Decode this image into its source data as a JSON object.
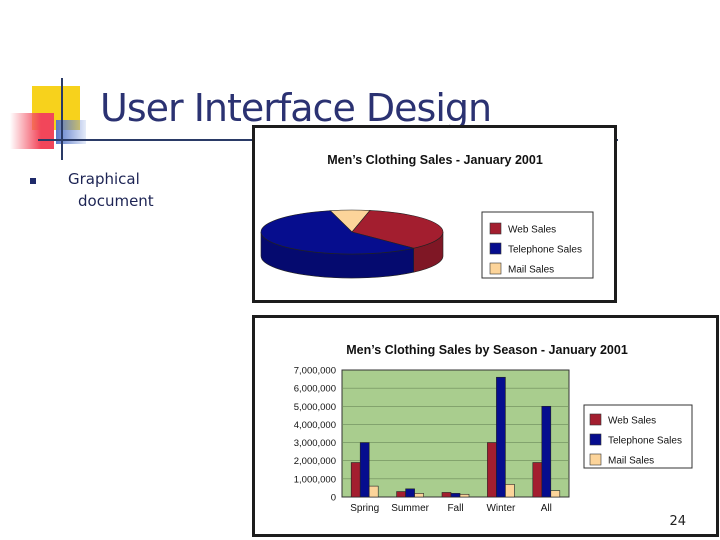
{
  "slide": {
    "title": "User Interface Design",
    "bullet": {
      "line1": "Graphical",
      "line2": "document"
    },
    "page_number": "24"
  },
  "colors": {
    "web": "#a31e2f",
    "telephone": "#060d8e",
    "mail": "#fcd49a",
    "plot_bg": "#a9cd8e",
    "title_blue": "#2b3272"
  },
  "chart_data": [
    {
      "type": "pie",
      "title": "Men’s Clothing Sales - January 2001",
      "labels": [
        "Web Sales",
        "Telephone Sales",
        "Mail Sales"
      ],
      "values": [
        35,
        58,
        7
      ],
      "legend": "right"
    },
    {
      "type": "bar",
      "title": "Men’s Clothing Sales by Season - January 2001",
      "categories": [
        "Spring",
        "Summer",
        "Fall",
        "Winter",
        "All"
      ],
      "series": [
        {
          "name": "Web Sales",
          "values": [
            1900000,
            300000,
            250000,
            3000000,
            1900000
          ]
        },
        {
          "name": "Telephone Sales",
          "values": [
            3000000,
            450000,
            200000,
            6600000,
            5000000
          ]
        },
        {
          "name": "Mail Sales",
          "values": [
            600000,
            200000,
            150000,
            700000,
            350000
          ]
        }
      ],
      "ylim": [
        0,
        7000000
      ],
      "yticks": [
        "0",
        "1,000,000",
        "2,000,000",
        "3,000,000",
        "4,000,000",
        "5,000,000",
        "6,000,000",
        "7,000,000"
      ],
      "legend": "right"
    }
  ]
}
